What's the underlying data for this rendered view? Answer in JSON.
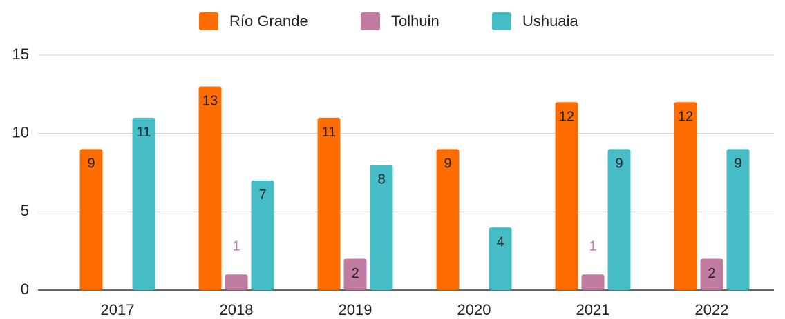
{
  "chart_data": {
    "type": "bar",
    "categories": [
      "2017",
      "2018",
      "2019",
      "2020",
      "2021",
      "2022"
    ],
    "series": [
      {
        "name": "Río Grande",
        "color": "#ff6d01",
        "values": [
          9,
          13,
          11,
          9,
          12,
          12
        ]
      },
      {
        "name": "Tolhuin",
        "color": "#c27ba0",
        "values": [
          null,
          1,
          2,
          null,
          1,
          2
        ]
      },
      {
        "name": "Ushuaia",
        "color": "#46bdc6",
        "values": [
          11,
          7,
          8,
          4,
          9,
          9
        ]
      }
    ],
    "ylim": [
      0,
      15
    ],
    "yticks": [
      0,
      5,
      10,
      15
    ],
    "grid": true,
    "legend": "top"
  }
}
